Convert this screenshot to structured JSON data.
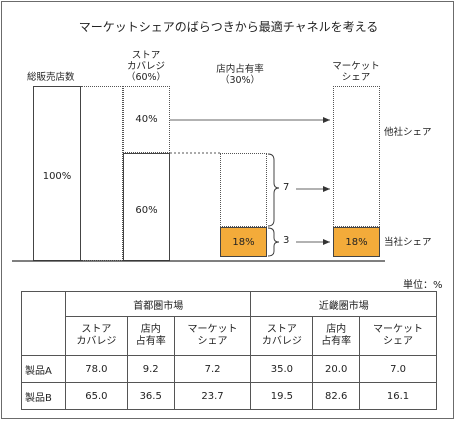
{
  "title": "マーケットシェアのばらつきから最適チャネルを考える",
  "diagram": {
    "bar1_label": "総販売店数",
    "bar1_value": "100%",
    "bar2_label_line1": "ストア",
    "bar2_label_line2": "カバレジ",
    "bar2_label_line3": "（60%）",
    "bar2_top_value": "40%",
    "bar2_bottom_value": "60%",
    "bar3_label_line1": "店内占有率",
    "bar3_label_line2": "（30%）",
    "bar3_value": "18%",
    "bar4_label_line1": "マーケット",
    "bar4_label_line2": "シェア",
    "bar4_value": "18%",
    "brace_upper_value": "7",
    "brace_lower_value": "3",
    "other_share_label": "他社シェア",
    "own_share_label": "当社シェア",
    "accent_color": "#f3ab3a"
  },
  "table": {
    "unit": "単位：%",
    "region1": "首都圏市場",
    "region2": "近畿圏市場",
    "columns": [
      [
        "ストア",
        "カバレジ"
      ],
      [
        "店内",
        "占有率"
      ],
      [
        "マーケット",
        "シェア"
      ],
      [
        "ストア",
        "カバレジ"
      ],
      [
        "店内",
        "占有率"
      ],
      [
        "マーケット",
        "シェア"
      ]
    ],
    "rows": [
      {
        "label": "製品A",
        "values": [
          "78.0",
          "9.2",
          "7.2",
          "35.0",
          "20.0",
          "7.0"
        ]
      },
      {
        "label": "製品B",
        "values": [
          "65.0",
          "36.5",
          "23.7",
          "19.5",
          "82.6",
          "16.1"
        ]
      }
    ]
  }
}
